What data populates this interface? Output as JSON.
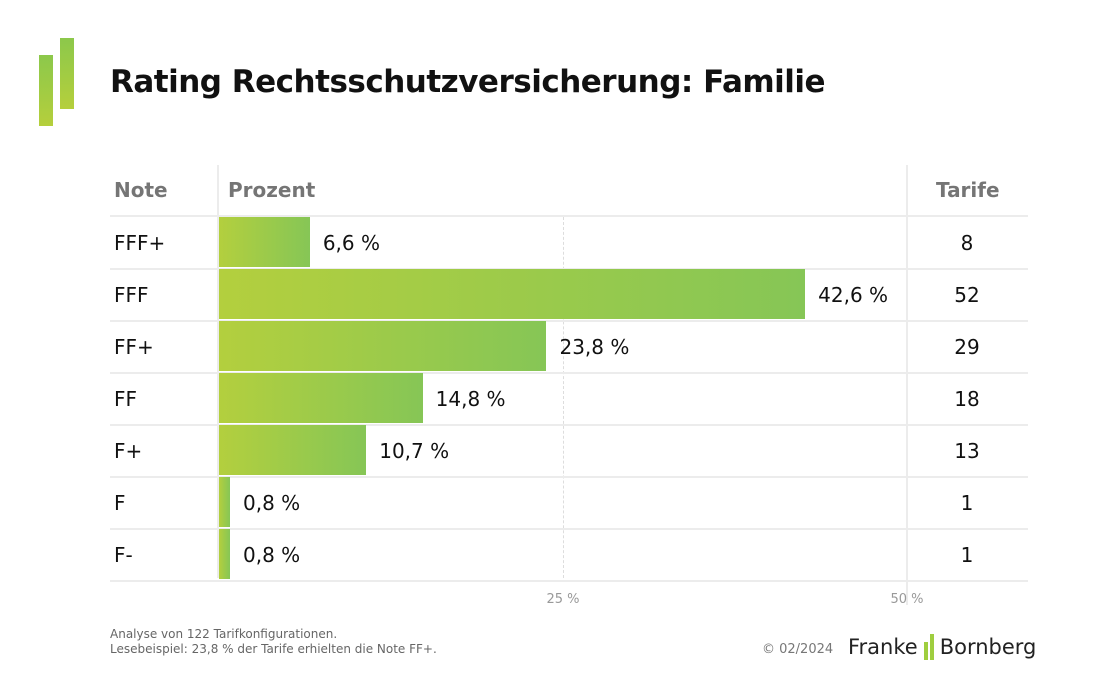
{
  "title": "Rating Rechtsschutzversicherung: Familie",
  "chart_data": {
    "type": "bar",
    "orientation": "horizontal",
    "title": "Rating Rechtsschutzversicherung: Familie",
    "columns": {
      "note": "Note",
      "percent": "Prozent",
      "tariffs": "Tarife"
    },
    "categories": [
      "FFF+",
      "FFF",
      "FF+",
      "FF",
      "F+",
      "F",
      "F-"
    ],
    "values": [
      6.6,
      42.6,
      23.8,
      14.8,
      10.7,
      0.8,
      0.8
    ],
    "value_labels": [
      "6,6 %",
      "42,6 %",
      "23,8 %",
      "14,8 %",
      "10,7 %",
      "0,8 %",
      "0,8 %"
    ],
    "tariffs": [
      "8",
      "52",
      "29",
      "18",
      "13",
      "1",
      "1"
    ],
    "xlim": [
      0,
      50
    ],
    "ticks": [
      {
        "value": 25,
        "label": "25 %"
      },
      {
        "value": 50,
        "label": "50 %"
      }
    ],
    "colors": {
      "bar_start": "#b3cf3e",
      "bar_end": "#86c656"
    }
  },
  "footer": {
    "line1": "Analyse von 122 Tarifkonfigurationen.",
    "line2": "Lesebeispiel: 23,8 % der Tarife erhielten die Note FF+.",
    "copyright": "© 02/2024",
    "brand_left": "Franke",
    "brand_right": "Bornberg"
  }
}
